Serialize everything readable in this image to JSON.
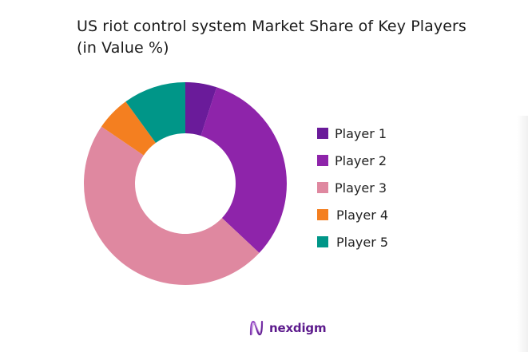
{
  "title": {
    "line1": "US riot control system Market Share of Key Players",
    "line2": "(in Value %)"
  },
  "legend": [
    {
      "label": "Player 1",
      "color": "#6a1b9a"
    },
    {
      "label": "Player 2",
      "color": "#8e24aa"
    },
    {
      "label": "Player 3",
      "color": "#df88a0"
    },
    {
      "label": "Player 4",
      "color": "#f47f20"
    },
    {
      "label": "Player 5",
      "color": "#009688"
    }
  ],
  "logo": {
    "text": "nexdigm"
  },
  "chart_data": {
    "type": "pie",
    "subtype": "donut",
    "title": "US riot control system Market Share of Key Players (in Value %)",
    "categories": [
      "Player 1",
      "Player 2",
      "Player 3",
      "Player 4",
      "Player 5"
    ],
    "values": [
      5,
      32,
      47.5,
      5.5,
      10
    ],
    "colors": [
      "#6a1b9a",
      "#8e24aa",
      "#df88a0",
      "#f47f20",
      "#009688"
    ],
    "start_angle": "12 o'clock, clockwise",
    "legend_position": "right",
    "data_labels": false
  }
}
